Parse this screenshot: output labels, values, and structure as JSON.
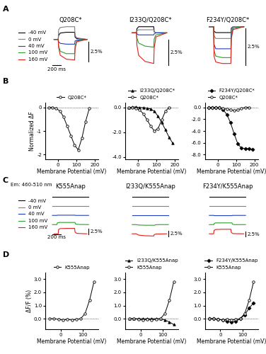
{
  "chart_data": [
    {
      "type": "traces",
      "panel_label": "A",
      "title": "Q208C*",
      "legend": "left",
      "tick_labels": false,
      "scale_x": {
        "value": 200,
        "label": "200 ms"
      },
      "scale_y": {
        "value": 2.5,
        "label": "2.5%"
      },
      "x": [
        0,
        100,
        110,
        150,
        300,
        500,
        510,
        550,
        800
      ],
      "series": [
        {
          "name": "-40 mV",
          "color": "#000000",
          "values": [
            0,
            0,
            0.5,
            0.8,
            0.9,
            0.9,
            0.3,
            0.1,
            0
          ]
        },
        {
          "name": "0 mV",
          "color": "#808080",
          "values": [
            0,
            0,
            1.2,
            1.5,
            1.6,
            1.6,
            0.5,
            0.2,
            0
          ]
        },
        {
          "name": "40 mV",
          "color": "#2040c0",
          "values": [
            0,
            0,
            -0.3,
            -0.5,
            -0.6,
            -0.6,
            -0.2,
            -0.1,
            0
          ]
        },
        {
          "name": "100 mV",
          "color": "#2ca02c",
          "values": [
            0,
            0,
            -0.8,
            -1.5,
            -1.8,
            -1.8,
            -0.8,
            -0.2,
            0
          ]
        },
        {
          "name": "160 mV",
          "color": "#e0201b",
          "values": [
            0,
            0,
            -1.0,
            -2.0,
            -2.5,
            -2.6,
            -1.2,
            -0.3,
            0
          ]
        }
      ]
    },
    {
      "type": "traces",
      "title": "I233Q/Q208C*",
      "tick_labels": false,
      "scale_y": {
        "value": 2.5,
        "label": "2.5%"
      },
      "x": [
        0,
        100,
        110,
        150,
        300,
        500,
        510,
        550,
        800
      ],
      "series": [
        {
          "name": "-40 mV",
          "color": "#000000",
          "values": [
            0,
            0,
            0.4,
            0.6,
            0.6,
            0.6,
            0.1,
            0,
            0
          ]
        },
        {
          "name": "0 mV",
          "color": "#808080",
          "values": [
            0,
            0,
            0.2,
            0.3,
            0.3,
            0.3,
            0.1,
            0,
            0
          ]
        },
        {
          "name": "40 mV",
          "color": "#2040c0",
          "values": [
            0,
            0,
            -0.1,
            -0.2,
            -0.2,
            -0.2,
            -0.1,
            0,
            0
          ]
        },
        {
          "name": "100 mV",
          "color": "#2ca02c",
          "values": [
            0,
            0,
            -0.5,
            -1.0,
            -1.3,
            -1.4,
            -0.6,
            -0.2,
            0
          ]
        },
        {
          "name": "160 mV",
          "color": "#e0201b",
          "values": [
            0,
            0,
            -1.2,
            -2.2,
            -2.8,
            -3.0,
            -1.5,
            -0.4,
            0
          ]
        }
      ]
    },
    {
      "type": "traces",
      "title": "F234Y/Q208C*",
      "tick_labels": false,
      "scale_y": {
        "value": 2.5,
        "label": "2.5%"
      },
      "x": [
        0,
        100,
        110,
        150,
        300,
        500,
        510,
        550,
        800
      ],
      "series": [
        {
          "name": "-40 mV",
          "color": "#000000",
          "values": [
            0,
            0,
            -0.3,
            -0.4,
            -0.4,
            -0.4,
            -0.1,
            0,
            0
          ]
        },
        {
          "name": "0 mV",
          "color": "#808080",
          "values": [
            0,
            0,
            -0.6,
            -0.8,
            -0.8,
            -0.8,
            -0.2,
            0,
            0
          ]
        },
        {
          "name": "40 mV",
          "color": "#2040c0",
          "values": [
            0,
            0,
            -1.2,
            -1.5,
            -1.5,
            -1.5,
            -0.5,
            -0.1,
            0
          ]
        },
        {
          "name": "100 mV",
          "color": "#2ca02c",
          "values": [
            0,
            0,
            -1.6,
            -2.0,
            -2.1,
            -2.1,
            -0.7,
            -0.1,
            0
          ]
        },
        {
          "name": "160 mV",
          "color": "#e0201b",
          "values": [
            0,
            0,
            -2.0,
            -2.4,
            -2.5,
            -2.5,
            -0.8,
            -0.2,
            0
          ]
        }
      ]
    },
    {
      "type": "line",
      "panel_label": "B",
      "legend": "above",
      "x_label": "Membrane Potential (mV)",
      "y_label": "Normalized ΔF",
      "xlim": [
        -70,
        220
      ],
      "ylim": [
        -2.2,
        0.2
      ],
      "xticks": [
        0,
        100,
        200
      ],
      "yticks": [
        -2,
        -1,
        0
      ],
      "x": [
        -50,
        -30,
        -10,
        10,
        30,
        50,
        70,
        90,
        110,
        130,
        150,
        170,
        190
      ],
      "series": [
        {
          "name": "Q208C*",
          "color": "#000000",
          "marker": "circle_open",
          "line_style": "solid",
          "values": [
            0,
            0,
            -0.05,
            -0.15,
            -0.4,
            -0.8,
            -1.2,
            -1.6,
            -1.8,
            -1.3,
            -0.6,
            -0.05,
            null
          ]
        }
      ]
    },
    {
      "type": "line",
      "legend": "above",
      "x_label": "Membrane Potential (mV)",
      "xlim": [
        -70,
        220
      ],
      "ylim": [
        -4.2,
        0.4
      ],
      "xticks": [
        0,
        100,
        200
      ],
      "yticks": [
        {
          "value": -4,
          "label": "-4.0"
        },
        {
          "value": -2,
          "label": "-2.0"
        },
        {
          "value": 0,
          "label": "0.0"
        }
      ],
      "x": [
        -50,
        -30,
        -10,
        10,
        30,
        50,
        70,
        90,
        110,
        130,
        150,
        170,
        190
      ],
      "series": [
        {
          "name": "I233Q/Q208C*",
          "color": "#000000",
          "marker": "triangle",
          "line_style": "solid",
          "values": [
            0,
            0.05,
            0.05,
            0,
            0,
            -0.05,
            -0.1,
            -0.3,
            -0.7,
            -1.2,
            -1.8,
            -2.4,
            -2.9
          ]
        },
        {
          "name": "Q208C*",
          "color": "#000000",
          "marker": "circle_open",
          "line_style": "solid",
          "values": [
            0,
            0,
            -0.05,
            -0.2,
            -0.5,
            -1.0,
            -1.5,
            -1.9,
            -1.7,
            -1.0,
            -0.3,
            0,
            null
          ]
        }
      ]
    },
    {
      "type": "line",
      "legend": "above",
      "x_label": "Membrane Potential (mV)",
      "xlim": [
        -70,
        220
      ],
      "ylim": [
        -8.8,
        0.8
      ],
      "xticks": [
        0,
        100,
        200
      ],
      "yticks": [
        {
          "value": -8,
          "label": "-8.0"
        },
        {
          "value": -6,
          "label": "-6.0"
        },
        {
          "value": -4,
          "label": "-4.0"
        },
        {
          "value": -2,
          "label": "-2.0"
        },
        {
          "value": 0,
          "label": "0.0"
        }
      ],
      "x": [
        -50,
        -30,
        -10,
        10,
        30,
        50,
        70,
        90,
        110,
        130,
        150,
        170,
        190
      ],
      "series": [
        {
          "name": "F234Y/Q208C*",
          "color": "#000000",
          "marker": "diamond",
          "line_style": "solid",
          "values": [
            0,
            0,
            0,
            -0.1,
            -0.4,
            -1.2,
            -2.6,
            -4.5,
            -6.2,
            -6.9,
            -7.0,
            -7.0,
            -7.1
          ]
        },
        {
          "name": "Q208C*",
          "color": "#000000",
          "marker": "circle_open",
          "line_style": "solid",
          "values": [
            0,
            0,
            0,
            -0.1,
            -0.2,
            -0.3,
            -0.4,
            -0.5,
            -0.4,
            -0.2,
            0,
            0,
            null
          ]
        }
      ]
    },
    {
      "type": "offset_traces",
      "panel_label": "C",
      "title": "K555Anap",
      "legend": "left",
      "annotations": [
        "Em: 460-510 nm"
      ],
      "tick_labels": false,
      "scale_x": {
        "value": 200,
        "label": "200 ms"
      },
      "scale_y": {
        "value": 2.5,
        "label": "2.5%"
      },
      "x": [
        0,
        100,
        110,
        150,
        300,
        500,
        510,
        550,
        800
      ],
      "series": [
        {
          "name": "-40 mV",
          "color": "#000000",
          "values": [
            0,
            0,
            0,
            0,
            0,
            0,
            0,
            0,
            0
          ]
        },
        {
          "name": "0 mV",
          "color": "#808080",
          "values": [
            0,
            0,
            0,
            0,
            0,
            0,
            0,
            0,
            0
          ]
        },
        {
          "name": "40 mV",
          "color": "#2040c0",
          "values": [
            0,
            0,
            0.1,
            0.1,
            0.1,
            0.1,
            0,
            0,
            0
          ]
        },
        {
          "name": "100 mV",
          "color": "#2ca02c",
          "values": [
            0,
            0,
            0.8,
            1.0,
            1.0,
            1.0,
            0.3,
            0.1,
            0
          ]
        },
        {
          "name": "160 mV",
          "color": "#e0201b",
          "values": [
            0,
            0,
            2.0,
            2.4,
            2.5,
            2.5,
            0.8,
            0.2,
            0
          ]
        }
      ]
    },
    {
      "type": "offset_traces",
      "title": "I233Q/K555Anap",
      "tick_labels": false,
      "scale_y": {
        "value": 2.5,
        "label": "2.5%"
      },
      "x": [
        0,
        100,
        110,
        150,
        300,
        500,
        510,
        550,
        800
      ],
      "series": [
        {
          "name": "-40 mV",
          "color": "#000000",
          "values": [
            0,
            0,
            0,
            0,
            0,
            0,
            0,
            0,
            0
          ]
        },
        {
          "name": "0 mV",
          "color": "#808080",
          "values": [
            0,
            0,
            0,
            0,
            0,
            0,
            0,
            0,
            0
          ]
        },
        {
          "name": "40 mV",
          "color": "#2040c0",
          "values": [
            0,
            0,
            0,
            0,
            0,
            0,
            0,
            0,
            0
          ]
        },
        {
          "name": "100 mV",
          "color": "#2ca02c",
          "values": [
            0,
            0,
            -0.1,
            -0.2,
            -0.3,
            -0.3,
            -0.1,
            0,
            0
          ]
        },
        {
          "name": "160 mV",
          "color": "#e0201b",
          "values": [
            0,
            0,
            -0.2,
            -0.6,
            -0.9,
            -1.0,
            -0.4,
            -0.1,
            0
          ]
        }
      ]
    },
    {
      "type": "offset_traces",
      "title": "F234Y/K555Anap",
      "tick_labels": false,
      "scale_y": {
        "value": 2.5,
        "label": "2.5%"
      },
      "x": [
        0,
        100,
        110,
        150,
        300,
        500,
        510,
        550,
        800
      ],
      "series": [
        {
          "name": "-40 mV",
          "color": "#000000",
          "values": [
            0,
            0,
            0,
            0,
            0,
            0,
            0,
            0,
            0
          ]
        },
        {
          "name": "0 mV",
          "color": "#808080",
          "values": [
            0,
            0,
            0,
            0,
            0,
            0,
            0,
            0,
            0
          ]
        },
        {
          "name": "40 mV",
          "color": "#2040c0",
          "values": [
            0,
            0,
            -0.1,
            -0.1,
            -0.1,
            -0.1,
            0,
            0,
            0
          ]
        },
        {
          "name": "100 mV",
          "color": "#2ca02c",
          "values": [
            0,
            0,
            0.6,
            0.8,
            0.8,
            0.8,
            0.2,
            0,
            0
          ]
        },
        {
          "name": "160 mV",
          "color": "#e0201b",
          "values": [
            0,
            0,
            1.6,
            2.0,
            2.1,
            2.1,
            0.6,
            0.1,
            0
          ]
        }
      ]
    },
    {
      "type": "line",
      "panel_label": "D",
      "legend": "above",
      "x_label": "Membrane Potential (mV)",
      "y_label": "ΔF/F (%)",
      "xlim": [
        -70,
        170
      ],
      "ylim": [
        -0.8,
        3.5
      ],
      "xticks": [
        0,
        100
      ],
      "yticks": [
        {
          "value": 0,
          "label": "0.0"
        },
        {
          "value": 1,
          "label": "1.0"
        },
        {
          "value": 2,
          "label": "2.0"
        },
        {
          "value": 3,
          "label": "3.0"
        }
      ],
      "x": [
        -50,
        -30,
        -10,
        10,
        30,
        50,
        70,
        90,
        110,
        130,
        150
      ],
      "series": [
        {
          "name": "K555Anap",
          "color": "#000000",
          "marker": "circle_open",
          "line_style": "solid",
          "values": [
            0,
            0,
            -0.05,
            -0.1,
            -0.05,
            -0.1,
            -0.05,
            0,
            0.4,
            1.4,
            2.8
          ]
        }
      ]
    },
    {
      "type": "line",
      "legend": "above",
      "x_label": "Membrane Potential (mV)",
      "xlim": [
        -70,
        170
      ],
      "ylim": [
        -0.8,
        3.5
      ],
      "xticks": [
        0,
        100
      ],
      "yticks": [
        {
          "value": 0,
          "label": "0.0"
        },
        {
          "value": 1,
          "label": "1.0"
        },
        {
          "value": 2,
          "label": "2.0"
        },
        {
          "value": 3,
          "label": "3.0"
        }
      ],
      "x": [
        -50,
        -30,
        -10,
        10,
        30,
        50,
        70,
        90,
        110,
        130,
        150
      ],
      "series": [
        {
          "name": "I233Q/K555Anap",
          "color": "#000000",
          "marker": "triangle",
          "line_style": "solid",
          "values": [
            0,
            0,
            0,
            0,
            0,
            0,
            0,
            0,
            -0.1,
            -0.25,
            -0.45
          ]
        },
        {
          "name": "K555Anap",
          "color": "#000000",
          "marker": "circle_open",
          "line_style": "solid",
          "values": [
            0,
            0,
            -0.05,
            -0.1,
            -0.05,
            -0.1,
            -0.05,
            0,
            0.4,
            1.4,
            2.8
          ]
        }
      ]
    },
    {
      "type": "line",
      "legend": "above",
      "x_label": "Membrane Potential (mV)",
      "xlim": [
        -70,
        170
      ],
      "ylim": [
        -0.8,
        3.5
      ],
      "xticks": [
        0,
        100
      ],
      "yticks": [
        {
          "value": 0,
          "label": "0.0"
        },
        {
          "value": 1,
          "label": "1.0"
        },
        {
          "value": 2,
          "label": "2.0"
        },
        {
          "value": 3,
          "label": "3.0"
        }
      ],
      "x": [
        -50,
        -30,
        -10,
        10,
        30,
        50,
        70,
        90,
        110,
        130,
        150
      ],
      "series": [
        {
          "name": "F234Y/K555Anap",
          "color": "#000000",
          "marker": "diamond",
          "line_style": "solid",
          "values": [
            0,
            0,
            -0.05,
            -0.1,
            -0.2,
            -0.25,
            -0.2,
            0,
            0.3,
            0.8,
            1.2
          ]
        },
        {
          "name": "K555Anap",
          "color": "#000000",
          "marker": "circle_open",
          "line_style": "solid",
          "values": [
            0,
            0,
            -0.05,
            -0.1,
            -0.05,
            -0.1,
            -0.05,
            0,
            0.4,
            1.4,
            2.8
          ]
        }
      ]
    }
  ]
}
